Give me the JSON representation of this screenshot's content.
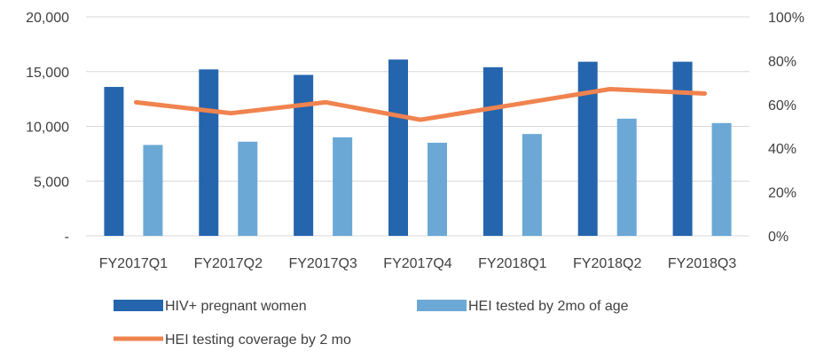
{
  "chart_data": {
    "type": "bar",
    "categories": [
      "FY2017Q1",
      "FY2017Q2",
      "FY2017Q3",
      "FY2017Q4",
      "FY2018Q1",
      "FY2018Q2",
      "FY2018Q3"
    ],
    "series": [
      {
        "name": "HIV+ pregnant women",
        "type": "bar",
        "axis": "left",
        "color": "#2565ad",
        "values": [
          13600,
          15200,
          14700,
          16100,
          15400,
          15900,
          15900
        ]
      },
      {
        "name": "HEI tested by 2mo of age",
        "type": "bar",
        "axis": "left",
        "color": "#6ba8d6",
        "values": [
          8300,
          8600,
          9000,
          8500,
          9300,
          10700,
          10300
        ]
      },
      {
        "name": "HEI testing coverage by 2 mo",
        "type": "line",
        "axis": "right",
        "color": "#f0834f",
        "values": [
          61,
          56,
          61,
          53,
          60,
          67,
          65
        ]
      }
    ],
    "left_axis": {
      "ylim": [
        0,
        20000
      ],
      "ticks": [
        "-",
        "5,000",
        "10,000",
        "15,000",
        "20,000"
      ],
      "tick_values": [
        0,
        5000,
        10000,
        15000,
        20000
      ]
    },
    "right_axis": {
      "ylim": [
        0,
        100
      ],
      "ticks": [
        "0%",
        "20%",
        "40%",
        "60%",
        "80%",
        "100%"
      ],
      "tick_values": [
        0,
        20,
        40,
        60,
        80,
        100
      ]
    },
    "grid": true,
    "legend_position": "bottom"
  }
}
